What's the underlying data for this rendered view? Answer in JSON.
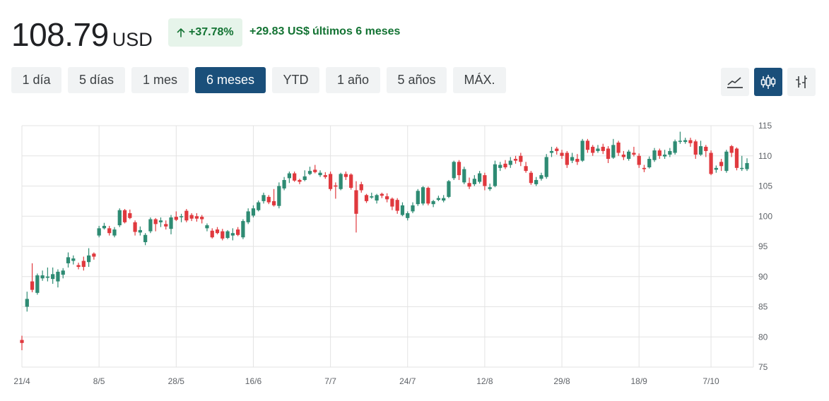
{
  "quote": {
    "price": "108.79",
    "currency": "USD",
    "change_percent": "+37.78%",
    "change_amount": "+29.83 US$",
    "change_period": "últimos 6 meses"
  },
  "ranges": [
    "1 día",
    "5 días",
    "1 mes",
    "6 meses",
    "YTD",
    "1 año",
    "5 años",
    "MÁX."
  ],
  "active_range": "6 meses",
  "chart_tools": [
    {
      "name": "line-chart-icon",
      "active": false
    },
    {
      "name": "candlestick-chart-icon",
      "active": true
    },
    {
      "name": "ohlc-chart-icon",
      "active": false
    }
  ],
  "colors": {
    "up": "#2e8b73",
    "down": "#e0393e",
    "accent": "#1a4f7a",
    "positive_text": "#137333"
  },
  "chart_data": {
    "type": "candlestick",
    "y_ticks": [
      75,
      80,
      85,
      90,
      95,
      100,
      105,
      110,
      115
    ],
    "ylim": [
      75,
      115
    ],
    "x_tick_labels": [
      "21/4",
      "8/5",
      "28/5",
      "16/6",
      "7/7",
      "24/7",
      "12/8",
      "29/8",
      "18/9",
      "7/10"
    ],
    "y_axis_position": "right",
    "grid": true,
    "candles": [
      [
        79.5,
        79.0,
        80.2,
        77.8
      ],
      [
        85.0,
        86.3,
        87.5,
        84.2
      ],
      [
        89.2,
        87.8,
        92.2,
        87.4
      ],
      [
        87.3,
        90.2,
        90.5,
        87.0
      ],
      [
        89.7,
        90.2,
        91.0,
        89.3
      ],
      [
        89.8,
        90.0,
        91.5,
        89.2
      ],
      [
        89.6,
        90.4,
        91.5,
        88.8
      ],
      [
        89.2,
        90.8,
        91.2,
        88.2
      ],
      [
        90.3,
        91.0,
        91.4,
        89.7
      ],
      [
        92.2,
        93.2,
        94.0,
        91.5
      ],
      [
        92.6,
        93.0,
        93.5,
        92.0
      ],
      [
        91.9,
        91.6,
        92.3,
        91.2
      ],
      [
        92.6,
        91.6,
        93.3,
        91.0
      ],
      [
        92.4,
        93.5,
        94.7,
        91.6
      ],
      [
        93.8,
        93.3,
        94.0,
        92.8
      ],
      [
        96.8,
        98.0,
        98.4,
        96.5
      ],
      [
        98.0,
        98.4,
        98.9,
        97.8
      ],
      [
        98.0,
        97.2,
        98.4,
        96.8
      ],
      [
        96.8,
        97.8,
        98.2,
        96.5
      ],
      [
        98.5,
        101.0,
        101.3,
        98.2
      ],
      [
        101.0,
        99.0,
        101.2,
        98.8
      ],
      [
        100.5,
        99.7,
        101.1,
        99.5
      ],
      [
        99.0,
        97.4,
        99.3,
        96.8
      ],
      [
        97.3,
        97.7,
        98.3,
        96.8
      ],
      [
        95.7,
        96.9,
        97.2,
        95.2
      ],
      [
        97.5,
        99.5,
        99.8,
        97.2
      ],
      [
        99.5,
        98.7,
        99.7,
        97.5
      ],
      [
        99.0,
        99.3,
        99.8,
        98.2
      ],
      [
        98.7,
        98.3,
        99.3,
        97.8
      ],
      [
        97.9,
        99.8,
        100.2,
        97.0
      ],
      [
        99.9,
        99.4,
        100.8,
        99.2
      ],
      [
        99.9,
        100.0,
        100.4,
        99.0
      ],
      [
        100.9,
        99.3,
        101.2,
        99.0
      ],
      [
        100.2,
        99.6,
        100.5,
        99.2
      ],
      [
        100.0,
        99.6,
        100.5,
        99.1
      ],
      [
        99.9,
        99.5,
        100.2,
        98.8
      ],
      [
        98.0,
        98.5,
        98.8,
        97.5
      ],
      [
        97.6,
        96.5,
        98.0,
        96.3
      ],
      [
        97.8,
        97.2,
        98.2,
        97.0
      ],
      [
        97.5,
        96.3,
        97.9,
        96.0
      ],
      [
        96.4,
        97.5,
        97.7,
        96.2
      ],
      [
        96.8,
        97.2,
        98.0,
        96.0
      ],
      [
        97.8,
        96.9,
        98.2,
        96.7
      ],
      [
        96.5,
        99.2,
        99.5,
        96.2
      ],
      [
        99.0,
        100.8,
        101.3,
        98.7
      ],
      [
        100.1,
        101.3,
        101.8,
        99.8
      ],
      [
        101.0,
        102.3,
        102.6,
        100.8
      ],
      [
        102.5,
        103.5,
        103.9,
        102.1
      ],
      [
        103.2,
        102.3,
        103.5,
        102.0
      ],
      [
        102.5,
        101.8,
        104.5,
        101.6
      ],
      [
        101.7,
        105.0,
        105.6,
        101.3
      ],
      [
        104.6,
        106.0,
        106.5,
        104.3
      ],
      [
        106.3,
        107.1,
        107.4,
        105.5
      ],
      [
        107.1,
        105.9,
        107.4,
        105.7
      ],
      [
        106.0,
        105.7,
        106.2,
        105.3
      ],
      [
        106.0,
        106.6,
        107.6,
        105.8
      ],
      [
        107.0,
        107.5,
        108.2,
        106.8
      ],
      [
        107.7,
        107.3,
        108.5,
        107.1
      ],
      [
        106.8,
        107.2,
        107.6,
        106.5
      ],
      [
        106.8,
        106.5,
        107.3,
        106.2
      ],
      [
        107.0,
        104.5,
        107.4,
        104.2
      ],
      [
        105.1,
        104.9,
        105.6,
        102.9
      ],
      [
        104.5,
        107.0,
        107.2,
        104.3
      ],
      [
        107.0,
        106.5,
        107.4,
        106.0
      ],
      [
        106.9,
        104.7,
        107.1,
        104.4
      ],
      [
        104.3,
        100.4,
        105.8,
        97.3
      ],
      [
        105.3,
        104.3,
        105.7,
        103.9
      ],
      [
        103.5,
        102.5,
        103.7,
        102.2
      ],
      [
        103.1,
        103.3,
        103.9,
        102.9
      ],
      [
        102.6,
        103.5,
        103.7,
        102.1
      ],
      [
        103.7,
        103.4,
        103.9,
        103.0
      ],
      [
        103.3,
        102.8,
        103.8,
        102.3
      ],
      [
        102.9,
        101.6,
        103.1,
        101.0
      ],
      [
        102.7,
        100.9,
        103.0,
        100.4
      ],
      [
        100.2,
        101.8,
        102.3,
        100.0
      ],
      [
        99.7,
        100.5,
        100.8,
        99.3
      ],
      [
        100.8,
        101.8,
        102.3,
        100.5
      ],
      [
        102.0,
        104.2,
        104.5,
        101.7
      ],
      [
        102.1,
        104.8,
        105.0,
        101.8
      ],
      [
        104.7,
        102.1,
        104.9,
        101.8
      ],
      [
        102.0,
        102.5,
        102.7,
        101.5
      ],
      [
        102.7,
        103.0,
        103.4,
        102.5
      ],
      [
        102.6,
        103.0,
        103.5,
        102.3
      ],
      [
        103.2,
        105.8,
        106.0,
        103.0
      ],
      [
        106.3,
        109.0,
        109.2,
        106.0
      ],
      [
        109.0,
        106.8,
        109.3,
        106.0
      ],
      [
        105.6,
        107.8,
        108.2,
        105.3
      ],
      [
        105.5,
        104.9,
        106.4,
        104.5
      ],
      [
        105.3,
        106.2,
        106.8,
        105.0
      ],
      [
        105.7,
        107.1,
        107.5,
        105.4
      ],
      [
        106.8,
        105.0,
        107.2,
        104.3
      ],
      [
        104.5,
        104.8,
        105.4,
        104.2
      ],
      [
        105.0,
        108.6,
        109.2,
        104.8
      ],
      [
        108.0,
        108.5,
        109.0,
        107.5
      ],
      [
        108.7,
        108.1,
        109.3,
        107.8
      ],
      [
        108.5,
        109.2,
        109.8,
        108.0
      ],
      [
        109.5,
        109.2,
        110.0,
        108.7
      ],
      [
        110.0,
        109.0,
        110.5,
        108.3
      ],
      [
        108.3,
        107.5,
        109.0,
        107.2
      ],
      [
        107.2,
        105.5,
        107.5,
        105.2
      ],
      [
        105.3,
        106.0,
        106.5,
        105.0
      ],
      [
        106.2,
        106.8,
        107.2,
        105.9
      ],
      [
        106.5,
        109.8,
        110.3,
        106.2
      ],
      [
        110.5,
        110.8,
        111.5,
        109.8
      ],
      [
        111.2,
        110.8,
        111.5,
        110.2
      ],
      [
        110.5,
        110.0,
        111.0,
        109.5
      ],
      [
        110.5,
        108.5,
        110.8,
        108.0
      ],
      [
        109.2,
        109.8,
        110.5,
        108.8
      ],
      [
        109.5,
        109.0,
        110.3,
        108.5
      ],
      [
        109.2,
        112.5,
        112.8,
        109.0
      ],
      [
        112.5,
        111.0,
        112.8,
        110.5
      ],
      [
        111.5,
        110.5,
        111.8,
        110.0
      ],
      [
        110.8,
        111.2,
        111.8,
        110.5
      ],
      [
        111.5,
        110.8,
        112.0,
        110.3
      ],
      [
        111.2,
        109.5,
        111.6,
        108.8
      ],
      [
        109.7,
        111.8,
        112.8,
        109.5
      ],
      [
        112.2,
        110.5,
        112.5,
        110.0
      ],
      [
        110.2,
        109.8,
        110.8,
        109.3
      ],
      [
        109.5,
        110.7,
        111.0,
        109.2
      ],
      [
        110.5,
        110.2,
        111.5,
        109.9
      ],
      [
        110.0,
        108.5,
        110.4,
        108.0
      ],
      [
        108.0,
        107.8,
        108.5,
        107.3
      ],
      [
        108.1,
        109.5,
        109.9,
        107.9
      ],
      [
        109.3,
        110.9,
        111.3,
        109.0
      ],
      [
        110.9,
        110.0,
        111.2,
        109.5
      ],
      [
        109.9,
        110.2,
        111.0,
        109.5
      ],
      [
        110.2,
        110.8,
        111.3,
        109.8
      ],
      [
        110.5,
        112.4,
        112.7,
        110.2
      ],
      [
        112.4,
        112.5,
        114.0,
        112.0
      ],
      [
        112.3,
        112.6,
        113.0,
        112.0
      ],
      [
        112.6,
        112.1,
        113.0,
        111.5
      ],
      [
        112.4,
        110.2,
        112.7,
        109.5
      ],
      [
        110.2,
        111.6,
        112.5,
        110.0
      ],
      [
        111.5,
        110.8,
        111.8,
        109.8
      ],
      [
        110.5,
        107.0,
        110.9,
        106.8
      ],
      [
        107.7,
        108.0,
        108.4,
        107.2
      ],
      [
        109.0,
        108.3,
        109.5,
        107.5
      ],
      [
        107.5,
        110.7,
        111.0,
        107.2
      ],
      [
        111.6,
        110.5,
        111.8,
        109.8
      ],
      [
        111.2,
        108.0,
        111.4,
        107.6
      ],
      [
        108.0,
        108.0,
        110.0,
        107.5
      ],
      [
        107.8,
        108.8,
        109.6,
        107.5
      ]
    ]
  }
}
